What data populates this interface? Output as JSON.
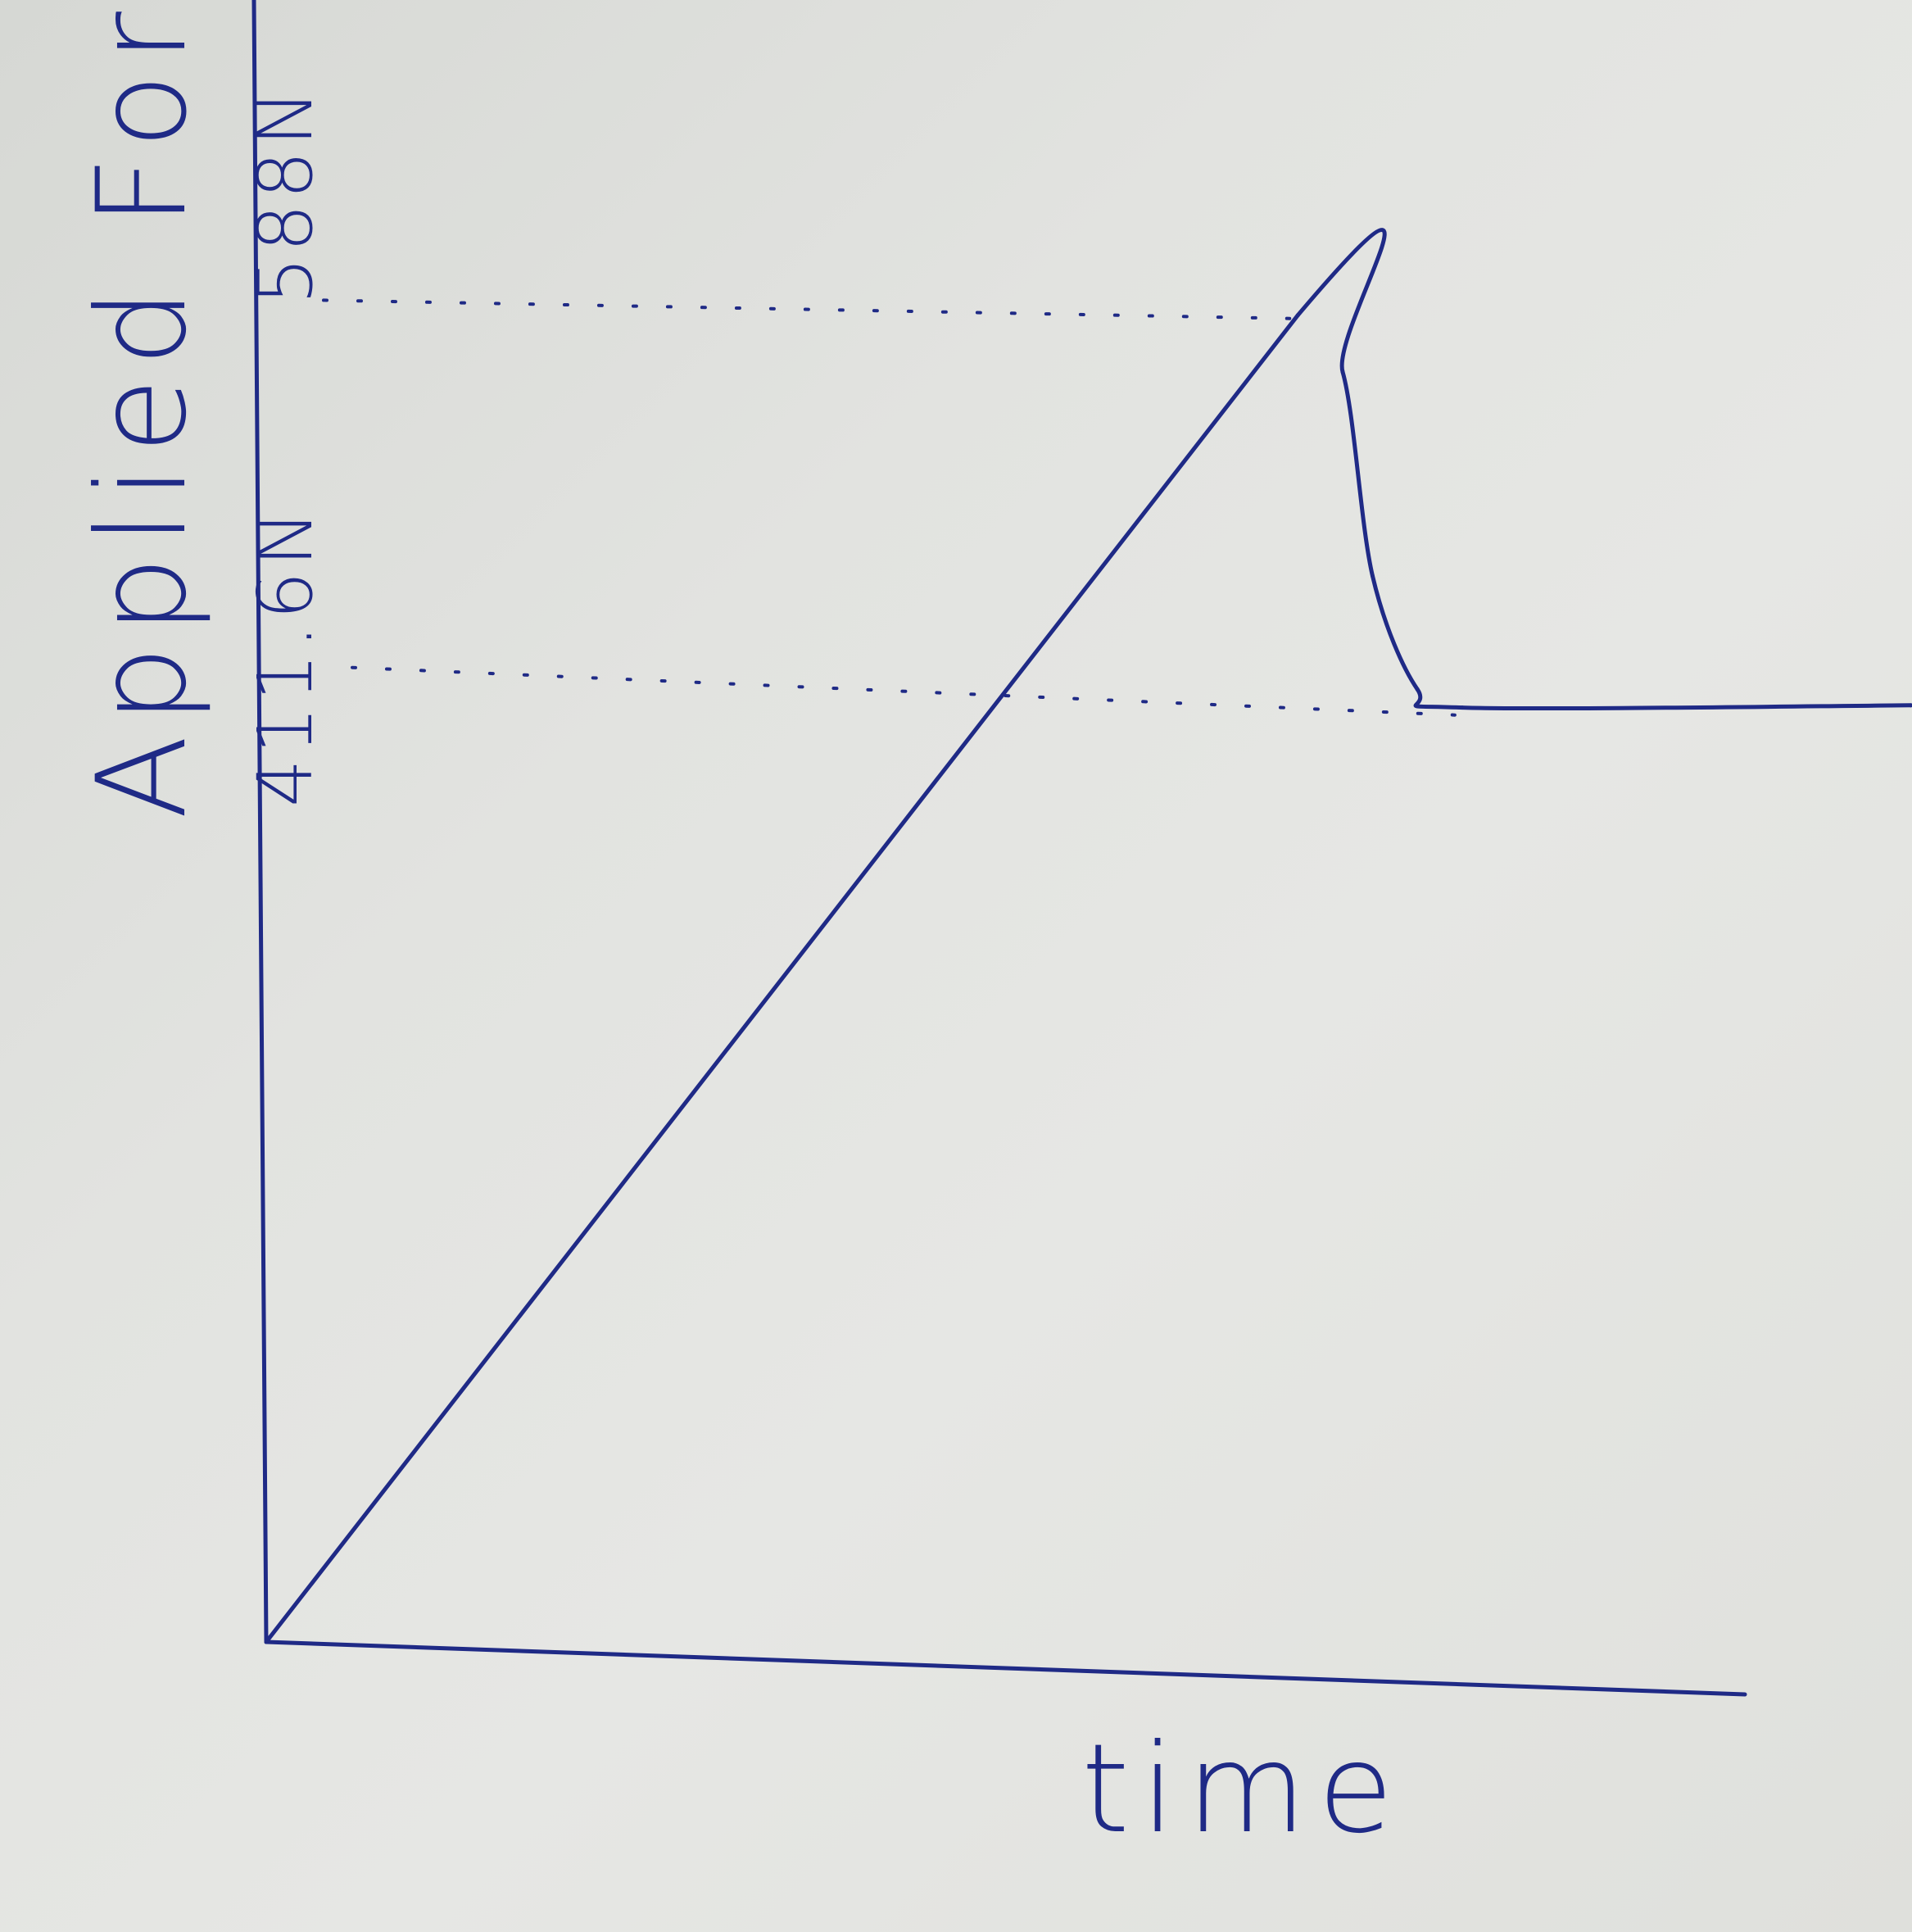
{
  "chart_data": {
    "type": "line",
    "xlabel": "time",
    "ylabel": "Applied Force",
    "annotations": [
      "588N",
      "411.6N"
    ],
    "y_reference_lines": [
      {
        "label": "588N",
        "value": 588,
        "style": "dotted"
      },
      {
        "label": "411.6N",
        "value": 411.6,
        "style": "dotted"
      }
    ],
    "ylim": [
      0,
      640
    ],
    "grid": false,
    "series": [
      {
        "values": [
          {
            "t": 0.0,
            "force": 0
          },
          {
            "t": 0.69,
            "force": 585
          },
          {
            "t": 0.72,
            "force": 560
          },
          {
            "t": 0.74,
            "force": 470
          },
          {
            "t": 0.77,
            "force": 420
          },
          {
            "t": 0.8,
            "force": 412
          },
          {
            "t": 1.1,
            "force": 413
          }
        ]
      }
    ],
    "colors": {
      "ink": "#1f2a86",
      "paper": "#e2e3e0"
    }
  }
}
